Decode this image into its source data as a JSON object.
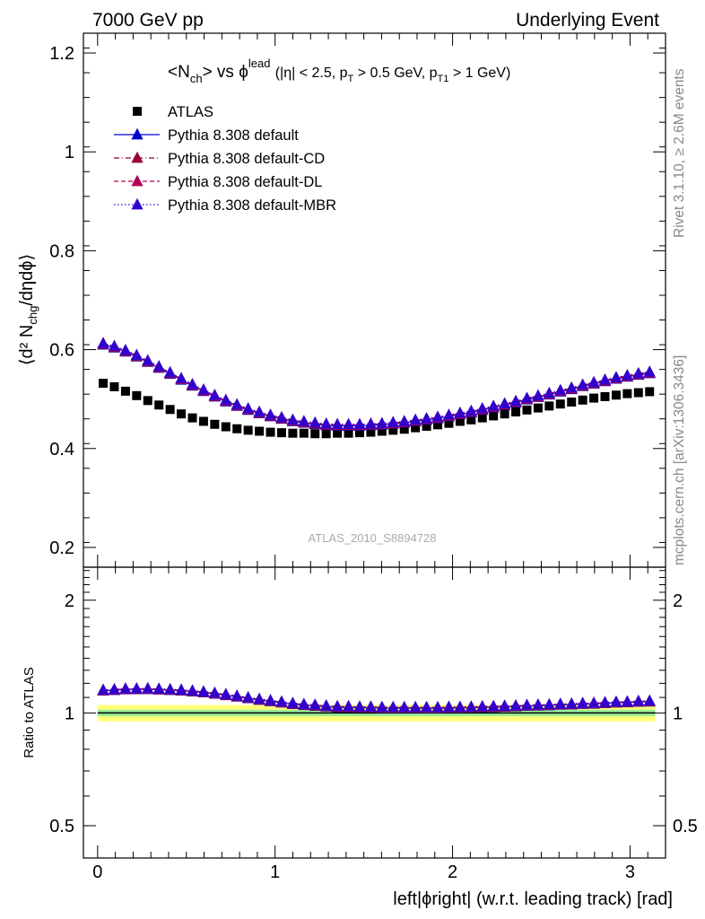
{
  "header": {
    "left": "7000 GeV pp",
    "right": "Underlying Event"
  },
  "side_labels": {
    "rivet": "Rivet 3.1.10, ≥ 2.6M events",
    "mcplots": "mcplots.cern.ch [arXiv:1306.3436]"
  },
  "top_panel": {
    "ylabel_main": "⟨d² N",
    "ylabel_sub1": "chg",
    "ylabel_rest": "/dηdϕ⟩",
    "title_main": "<N",
    "title_sub": "ch",
    "title_mid": "> vs ϕ",
    "title_sup": "lead",
    "title_cuts": "(|η| < 2.5, p",
    "title_cuts_sub1": "T",
    "title_cuts_mid": " > 0.5 GeV, p",
    "title_cuts_sub2": "T1",
    "title_cuts_end": " > 1 GeV)",
    "watermark": "ATLAS_2010_S8894728"
  },
  "bottom_panel": {
    "ylabel": "Ratio to ATLAS"
  },
  "xlabel": "left|ϕright| (w.r.t. leading track) [rad]",
  "legend": [
    {
      "label": "ATLAS",
      "color": "#000000",
      "marker": "square"
    },
    {
      "label": "Pythia 8.308 default",
      "color": "#0000cc",
      "marker": "triangle",
      "dash": "solid"
    },
    {
      "label": "Pythia 8.308 default-CD",
      "color": "#990033",
      "marker": "triangle",
      "dash": "dashdot"
    },
    {
      "label": "Pythia 8.308 default-DL",
      "color": "#b3005a",
      "marker": "triangle",
      "dash": "dashed"
    },
    {
      "label": "Pythia 8.308 default-MBR",
      "color": "#3300cc",
      "marker": "triangle",
      "dash": "dotted"
    }
  ],
  "chart_data": {
    "type": "scatter",
    "x": [
      0.0314,
      0.0942,
      0.1571,
      0.2199,
      0.2827,
      0.3456,
      0.4084,
      0.4712,
      0.5341,
      0.5969,
      0.6597,
      0.7226,
      0.7854,
      0.8482,
      0.9111,
      0.9739,
      1.0367,
      1.0996,
      1.1624,
      1.2252,
      1.2881,
      1.3509,
      1.4137,
      1.4765,
      1.5394,
      1.6022,
      1.665,
      1.7279,
      1.7907,
      1.8535,
      1.9164,
      1.9792,
      2.042,
      2.1049,
      2.1677,
      2.2305,
      2.2934,
      2.3562,
      2.419,
      2.4819,
      2.5447,
      2.6075,
      2.6704,
      2.7332,
      2.796,
      2.8588,
      2.9217,
      2.9845,
      3.0473,
      3.1102
    ],
    "series": [
      {
        "name": "ATLAS",
        "values": [
          0.532,
          0.525,
          0.516,
          0.507,
          0.497,
          0.488,
          0.479,
          0.47,
          0.462,
          0.455,
          0.449,
          0.444,
          0.44,
          0.437,
          0.435,
          0.433,
          0.432,
          0.431,
          0.431,
          0.43,
          0.43,
          0.431,
          0.431,
          0.432,
          0.433,
          0.435,
          0.437,
          0.439,
          0.442,
          0.445,
          0.448,
          0.451,
          0.455,
          0.458,
          0.462,
          0.466,
          0.47,
          0.474,
          0.478,
          0.482,
          0.486,
          0.49,
          0.494,
          0.498,
          0.502,
          0.505,
          0.508,
          0.511,
          0.513,
          0.515
        ]
      },
      {
        "name": "Pythia 8.308 default",
        "values": [
          0.61,
          0.604,
          0.596,
          0.586,
          0.575,
          0.563,
          0.551,
          0.539,
          0.527,
          0.516,
          0.505,
          0.495,
          0.486,
          0.478,
          0.471,
          0.465,
          0.46,
          0.455,
          0.452,
          0.449,
          0.447,
          0.446,
          0.446,
          0.446,
          0.447,
          0.448,
          0.45,
          0.452,
          0.455,
          0.458,
          0.461,
          0.465,
          0.469,
          0.473,
          0.478,
          0.483,
          0.488,
          0.493,
          0.499,
          0.504,
          0.509,
          0.515,
          0.52,
          0.526,
          0.531,
          0.536,
          0.541,
          0.545,
          0.549,
          0.552
        ]
      },
      {
        "name": "Pythia 8.308 default-CD",
        "values": [
          0.611,
          0.605,
          0.597,
          0.587,
          0.576,
          0.564,
          0.552,
          0.54,
          0.528,
          0.517,
          0.506,
          0.496,
          0.487,
          0.479,
          0.472,
          0.466,
          0.461,
          0.456,
          0.453,
          0.45,
          0.448,
          0.447,
          0.447,
          0.447,
          0.448,
          0.449,
          0.451,
          0.453,
          0.456,
          0.459,
          0.462,
          0.466,
          0.47,
          0.474,
          0.479,
          0.484,
          0.489,
          0.494,
          0.5,
          0.505,
          0.51,
          0.516,
          0.521,
          0.527,
          0.532,
          0.537,
          0.542,
          0.546,
          0.55,
          0.553
        ]
      },
      {
        "name": "Pythia 8.308 default-DL",
        "values": [
          0.612,
          0.606,
          0.598,
          0.588,
          0.577,
          0.565,
          0.553,
          0.541,
          0.529,
          0.518,
          0.507,
          0.497,
          0.488,
          0.48,
          0.473,
          0.467,
          0.462,
          0.457,
          0.454,
          0.451,
          0.449,
          0.448,
          0.448,
          0.448,
          0.449,
          0.45,
          0.452,
          0.454,
          0.457,
          0.46,
          0.463,
          0.467,
          0.471,
          0.475,
          0.48,
          0.485,
          0.49,
          0.495,
          0.501,
          0.506,
          0.511,
          0.517,
          0.522,
          0.528,
          0.533,
          0.538,
          0.543,
          0.547,
          0.551,
          0.554
        ]
      },
      {
        "name": "Pythia 8.308 default-MBR",
        "values": [
          0.613,
          0.607,
          0.599,
          0.589,
          0.578,
          0.566,
          0.554,
          0.542,
          0.53,
          0.519,
          0.508,
          0.498,
          0.489,
          0.481,
          0.474,
          0.468,
          0.463,
          0.458,
          0.455,
          0.452,
          0.45,
          0.449,
          0.449,
          0.449,
          0.45,
          0.451,
          0.453,
          0.455,
          0.458,
          0.461,
          0.464,
          0.468,
          0.472,
          0.476,
          0.481,
          0.486,
          0.491,
          0.496,
          0.502,
          0.507,
          0.512,
          0.518,
          0.523,
          0.529,
          0.534,
          0.539,
          0.544,
          0.548,
          0.552,
          0.555
        ]
      }
    ],
    "xlim": [
      -0.08,
      3.2
    ],
    "top_ylim": [
      0.16,
      1.24
    ],
    "top_yticks": [
      "0.2",
      "0.4",
      "0.6",
      "0.8",
      "1",
      "1.2"
    ],
    "top_ytick_values": [
      0.2,
      0.4,
      0.6,
      0.8,
      1.0,
      1.2
    ],
    "ratio_ylim": [
      0.41,
      2.45
    ],
    "ratio_yticks": [
      "0.5",
      "1",
      "2"
    ],
    "ratio_ytick_values": [
      0.5,
      1,
      2
    ],
    "xticks": [
      "0",
      "1",
      "2",
      "3"
    ],
    "xtick_values": [
      0,
      1,
      2,
      3
    ],
    "ratio_band": {
      "inner": 0.02,
      "outer": 0.05
    }
  }
}
